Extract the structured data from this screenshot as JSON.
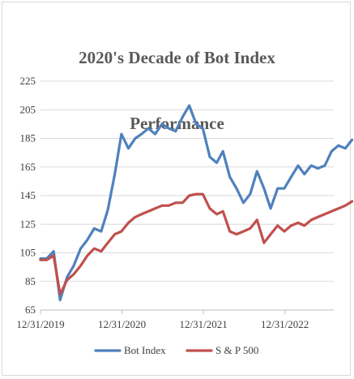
{
  "chart_data": {
    "type": "line",
    "title": "2020's Decade of Bot Index Performance",
    "title_lines": [
      "2020's Decade of Bot Index",
      "Performance"
    ],
    "xlabel": "",
    "ylabel": "",
    "ylim": [
      65,
      225
    ],
    "yticks": [
      "225",
      "205",
      "185",
      "165",
      "145",
      "125",
      "105",
      "85",
      "65"
    ],
    "xticks": [
      "12/31/2019",
      "12/31/2020",
      "12/31/2021",
      "12/31/2022"
    ],
    "grid": "horizontal",
    "legend_position": "bottom",
    "x": [
      "2020-01",
      "2020-02",
      "2020-03",
      "2020-04",
      "2020-05",
      "2020-06",
      "2020-07",
      "2020-08",
      "2020-09",
      "2020-10",
      "2020-11",
      "2020-12",
      "2021-01",
      "2021-02",
      "2021-03",
      "2021-04",
      "2021-05",
      "2021-06",
      "2021-07",
      "2021-08",
      "2021-09",
      "2021-10",
      "2021-11",
      "2021-12",
      "2022-01",
      "2022-02",
      "2022-03",
      "2022-04",
      "2022-05",
      "2022-06",
      "2022-07",
      "2022-08",
      "2022-09",
      "2022-10",
      "2022-11",
      "2022-12",
      "2023-01",
      "2023-02",
      "2023-03",
      "2023-04",
      "2023-05",
      "2023-06",
      "2023-07",
      "2023-08",
      "2023-09",
      "2023-10"
    ],
    "series": [
      {
        "name": "Bot Index",
        "color": "#4f81bd",
        "values": [
          101,
          106,
          72,
          88,
          96,
          108,
          114,
          122,
          120,
          135,
          160,
          188,
          178,
          185,
          188,
          192,
          188,
          195,
          192,
          190,
          200,
          208,
          195,
          192,
          172,
          168,
          176,
          158,
          150,
          140,
          146,
          162,
          150,
          136,
          150,
          150,
          158,
          166,
          160,
          166,
          164,
          166,
          176,
          180,
          178,
          184
        ]
      },
      {
        "name": "S & P 500",
        "color": "#c0504d",
        "values": [
          100,
          103,
          76,
          86,
          90,
          96,
          103,
          108,
          106,
          112,
          118,
          120,
          126,
          130,
          132,
          134,
          136,
          138,
          138,
          140,
          140,
          145,
          146,
          146,
          136,
          132,
          134,
          120,
          118,
          120,
          122,
          128,
          112,
          118,
          124,
          120,
          124,
          126,
          124,
          128,
          130,
          132,
          134,
          136,
          138,
          141
        ]
      }
    ]
  }
}
